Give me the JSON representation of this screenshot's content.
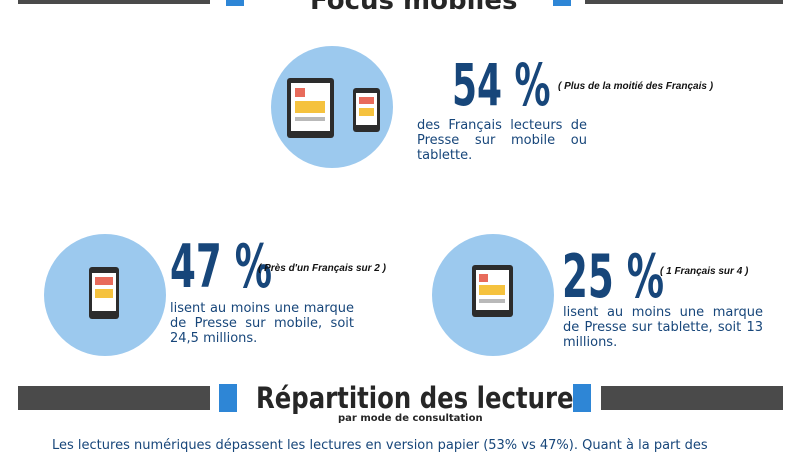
{
  "top_heading": "Focus mobiles",
  "stats": [
    {
      "value": "54 %",
      "note": "( Plus de la moitié des Français )",
      "description": "des Français lecteurs de Presse sur mobile ou tablette."
    },
    {
      "value": "47 %",
      "note": "( Près d'un Français sur 2 )",
      "description": "lisent au moins une marque de Presse sur mobile, soit 24,5 millions."
    },
    {
      "value": "25 %",
      "note": "( 1 Français sur 4 )",
      "description": "lisent au moins une marque de Presse sur tablette, soit 13 millions."
    }
  ],
  "section": {
    "title": "Répartition des lectures",
    "subtitle": "par mode de consultation"
  },
  "footer_text": "Les lectures numériques dépassent les lectures en version papier (53% vs 47%). Quant à la part des",
  "colors": {
    "dark_bar": "#4a4a4a",
    "accent_blue": "#2e86d6",
    "circle_blue": "#9cc9ee",
    "stat_navy": "#17467a"
  },
  "icons": [
    "tablet-icon",
    "phone-icon"
  ]
}
